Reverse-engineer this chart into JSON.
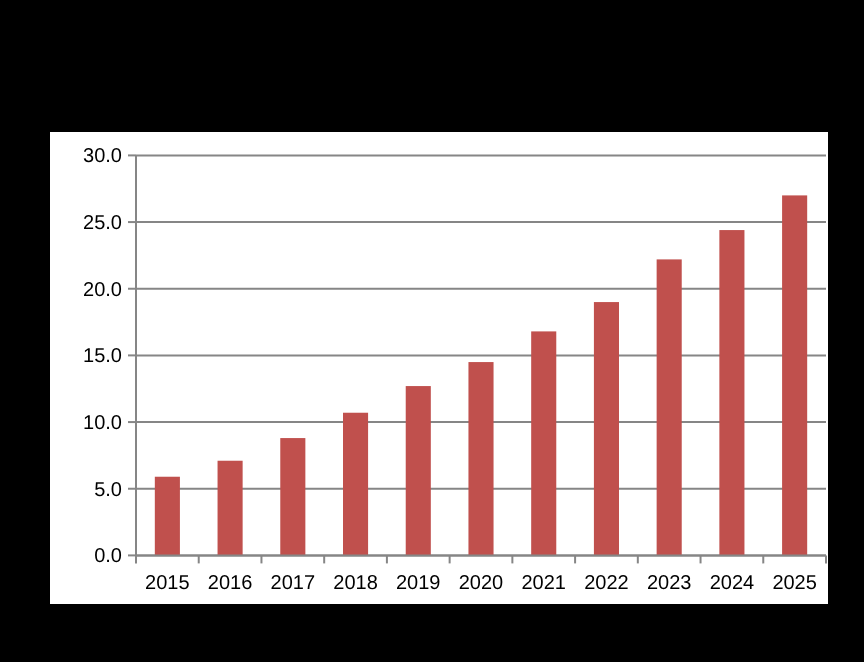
{
  "chart_data": {
    "type": "bar",
    "categories": [
      "2015",
      "2016",
      "2017",
      "2018",
      "2019",
      "2020",
      "2021",
      "2022",
      "2023",
      "2024",
      "2025"
    ],
    "values": [
      5.9,
      7.1,
      8.8,
      10.7,
      12.7,
      14.5,
      16.8,
      19.0,
      22.2,
      24.4,
      27.0
    ],
    "color": "#c0504d",
    "ylim": [
      0,
      30
    ],
    "yticks": [
      {
        "value": 0,
        "label": "0.0"
      },
      {
        "value": 5,
        "label": "5.0"
      },
      {
        "value": 10,
        "label": "10.0"
      },
      {
        "value": 15,
        "label": "15.0"
      },
      {
        "value": 20,
        "label": "20.0"
      },
      {
        "value": 25,
        "label": "25.0"
      },
      {
        "value": 30,
        "label": "30.0"
      }
    ],
    "grid": "y"
  }
}
